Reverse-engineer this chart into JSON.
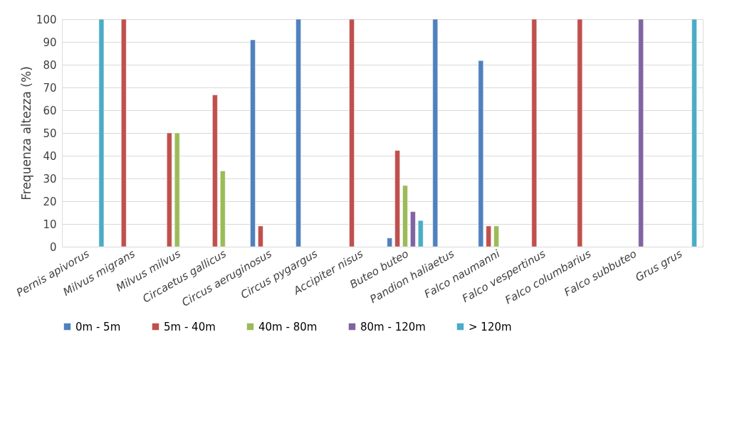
{
  "chart_data": {
    "type": "bar",
    "ylabel": "Frequenza altezza (%)",
    "categories": [
      "Pernis apivorus",
      "Milvus migrans",
      "Milvus milvus",
      "Circaetus gallicus",
      "Circus aeruginosus",
      "Circus pygargus",
      "Accipiter nisus",
      "Buteo buteo",
      "Pandion haliaetus",
      "Falco naumanni",
      "Falco vespertinus",
      "Falco columbarius",
      "Falco subbuteo",
      "Grus grus"
    ],
    "series": [
      {
        "name": "0m - 5m",
        "color": "#4f81bd",
        "values": [
          null,
          null,
          null,
          null,
          90.9,
          100,
          null,
          3.8,
          100,
          81.8,
          null,
          null,
          null,
          null
        ]
      },
      {
        "name": "5m - 40m",
        "color": "#c0504d",
        "values": [
          null,
          100,
          50,
          66.7,
          9.1,
          null,
          100,
          42.3,
          null,
          9.1,
          100,
          100,
          null,
          null
        ]
      },
      {
        "name": "40m - 80m",
        "color": "#9bbb59",
        "values": [
          null,
          null,
          50,
          33.3,
          null,
          null,
          null,
          26.9,
          null,
          9.1,
          null,
          null,
          null,
          null
        ]
      },
      {
        "name": "80m - 120m",
        "color": "#8064a2",
        "values": [
          null,
          null,
          null,
          null,
          null,
          null,
          null,
          15.4,
          null,
          null,
          null,
          null,
          100,
          null
        ]
      },
      {
        "name": "> 120m",
        "color": "#4bacc6",
        "values": [
          100,
          null,
          null,
          null,
          null,
          null,
          null,
          11.5,
          null,
          null,
          null,
          null,
          null,
          100
        ]
      }
    ],
    "ylim": [
      0,
      100
    ],
    "yticks": [
      0,
      10,
      20,
      30,
      40,
      50,
      60,
      70,
      80,
      90,
      100
    ],
    "grid": "y",
    "legend": "bottom"
  }
}
